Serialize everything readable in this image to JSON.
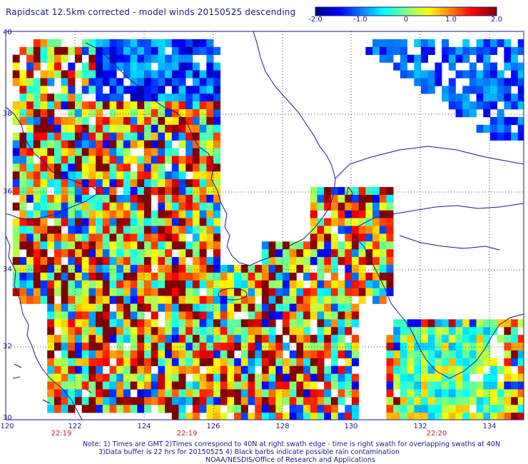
{
  "title": "Rapidscat 12.5km corrected - model winds 20150525 descending",
  "colorbar": {
    "labels": [
      "-2.0",
      "-1.0",
      "0",
      "1.0",
      "2.0"
    ],
    "range": [
      -2.0,
      2.0
    ]
  },
  "axes": {
    "lat_labels": [
      "40",
      "38",
      "36",
      "34",
      "32",
      "30"
    ],
    "lon_labels": [
      "120",
      "122",
      "124",
      "126",
      "128",
      "130",
      "132",
      "134"
    ],
    "lat_range": [
      30,
      40
    ],
    "lon_range": [
      120,
      135
    ]
  },
  "swath_times": [
    "22:19",
    "22:19",
    "22:20"
  ],
  "notes": [
    "Note: 1) Times are GMT 2)Times correspond to 40N at right swath edge - time is right swath for overlapping swaths at 40N",
    "3)Data buffer is 22 hrs for 20150525 4) Black barbs indicate possible rain contamination",
    "NOAA/NESDIS/Office of Research and Applications"
  ],
  "colors": {
    "text": "#1a1a8c",
    "time_text": "#c02020",
    "coast": "#1a1a8c",
    "grid": "#444444"
  }
}
